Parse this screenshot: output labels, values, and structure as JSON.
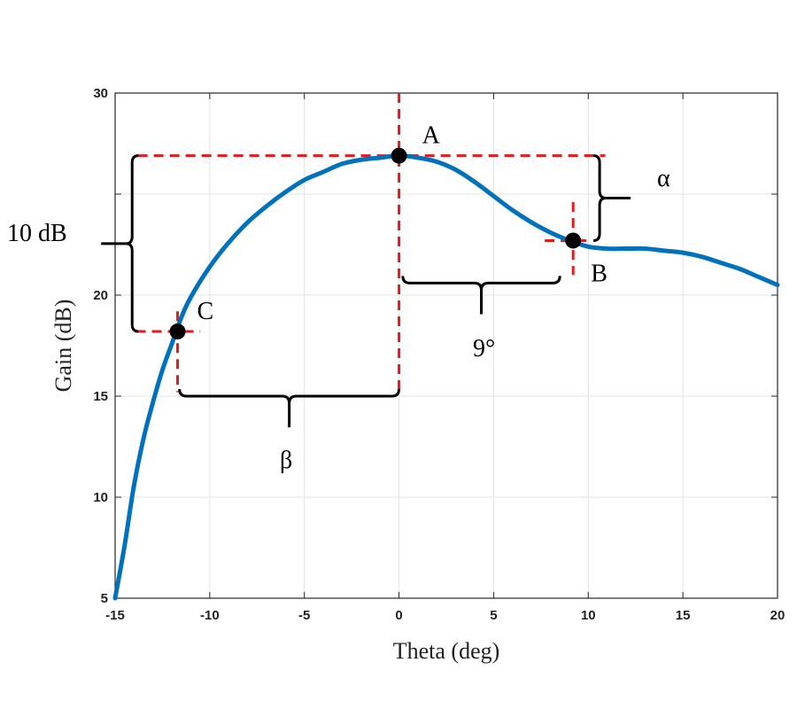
{
  "chart_data": {
    "type": "line",
    "title": "",
    "xlabel": "Theta (deg)",
    "ylabel": "Gain (dB)",
    "xlim": [
      -15,
      20
    ],
    "ylim": [
      5,
      30
    ],
    "xticks": [
      -15,
      -10,
      -5,
      0,
      5,
      10,
      15,
      20
    ],
    "yticks": [
      5,
      10,
      15,
      20,
      30
    ],
    "grid": true,
    "series_color": "#0072BD",
    "series": [
      {
        "name": "",
        "x": [
          -15,
          -14.5,
          -14,
          -13.5,
          -13,
          -12.5,
          -12,
          -11.5,
          -11,
          -10,
          -9,
          -8,
          -7,
          -6,
          -5,
          -4,
          -3,
          -2,
          -1,
          0,
          1,
          2,
          3,
          4,
          5,
          6,
          7,
          8,
          9,
          10,
          11,
          12,
          13,
          14,
          15,
          16,
          17,
          18,
          19,
          20
        ],
        "y": [
          5.0,
          7.6,
          10.6,
          12.9,
          14.7,
          16.3,
          17.6,
          18.9,
          19.9,
          21.4,
          22.6,
          23.6,
          24.4,
          25.1,
          25.7,
          26.1,
          26.5,
          26.7,
          26.8,
          26.9,
          26.8,
          26.6,
          26.2,
          25.6,
          24.9,
          24.2,
          23.6,
          23.1,
          22.7,
          22.4,
          22.3,
          22.3,
          22.3,
          22.2,
          22.1,
          21.9,
          21.6,
          21.3,
          20.9,
          20.5
        ]
      }
    ],
    "markers": [
      {
        "label": "A",
        "x": 0,
        "y": 26.9
      },
      {
        "label": "B",
        "x": 9.2,
        "y": 22.7
      },
      {
        "label": "C",
        "x": -11.7,
        "y": 18.2
      }
    ],
    "annotations": {
      "ten_db": "10 dB",
      "alpha": "α",
      "nine_deg": "9°",
      "beta": "β"
    }
  }
}
